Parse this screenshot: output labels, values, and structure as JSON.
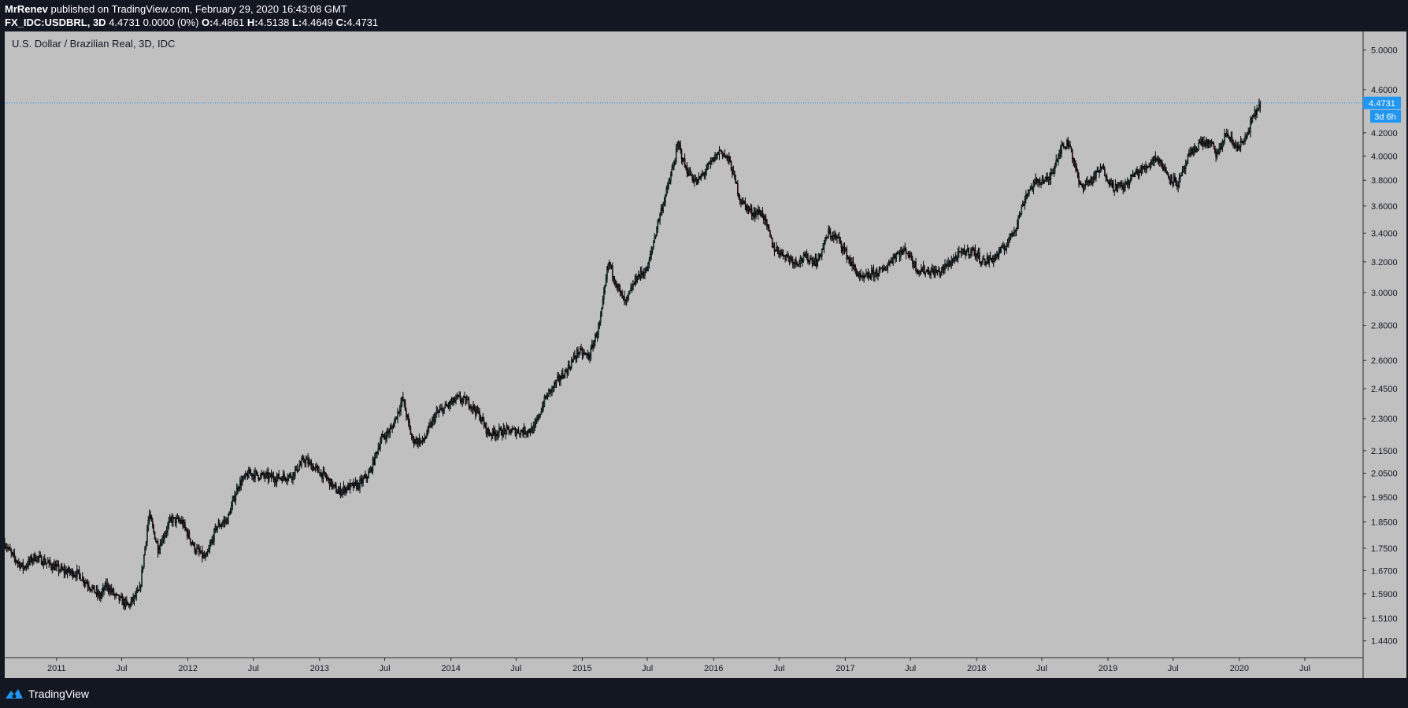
{
  "header": {
    "author": "MrRenev",
    "published": "published on TradingView.com, February 29, 2020 16:43:08 GMT",
    "symbol": "FX_IDC:USDBRL, 3D",
    "quote": "4.4731 0.0000 (0%)",
    "o_label": "O:",
    "o_value": "4.4861",
    "h_label": "H:",
    "h_value": "4.5138",
    "l_label": "L:",
    "l_value": "4.4649",
    "c_label": "C:",
    "c_value": "4.4731"
  },
  "footer": {
    "brand": "TradingView"
  },
  "colors": {
    "page_bg": "#131722",
    "plot_bg": "#c0c0c0",
    "candle": "#000000",
    "up_fill": "#26a69a",
    "down_fill": "#8b1a3a",
    "price_line": "#2196f3",
    "badge": "#2196f3"
  },
  "chart_data": {
    "type": "candlestick",
    "title": "U.S. Dollar / Brazilian Real, 3D, IDC",
    "scale": "log",
    "ylim": [
      1.39,
      5.2
    ],
    "xlim": [
      "2010-08-10",
      "2020-12-10"
    ],
    "grid": false,
    "y_ticks": [
      "5.0000",
      "4.6000",
      "4.2000",
      "4.0000",
      "3.8000",
      "3.6000",
      "3.4000",
      "3.2000",
      "3.0000",
      "2.8000",
      "2.6000",
      "2.4500",
      "2.3000",
      "2.1500",
      "2.0500",
      "1.9500",
      "1.8500",
      "1.7500",
      "1.6700",
      "1.5900",
      "1.5100",
      "1.4400"
    ],
    "x_ticks": [
      {
        "label": "2011",
        "date": "2011-01-01"
      },
      {
        "label": "Jul",
        "date": "2011-07-01"
      },
      {
        "label": "2012",
        "date": "2012-01-01"
      },
      {
        "label": "Jul",
        "date": "2012-07-01"
      },
      {
        "label": "2013",
        "date": "2013-01-01"
      },
      {
        "label": "Jul",
        "date": "2013-07-01"
      },
      {
        "label": "2014",
        "date": "2014-01-01"
      },
      {
        "label": "Jul",
        "date": "2014-07-01"
      },
      {
        "label": "2015",
        "date": "2015-01-01"
      },
      {
        "label": "Jul",
        "date": "2015-07-01"
      },
      {
        "label": "2016",
        "date": "2016-01-01"
      },
      {
        "label": "Jul",
        "date": "2016-07-01"
      },
      {
        "label": "2017",
        "date": "2017-01-01"
      },
      {
        "label": "Jul",
        "date": "2017-07-01"
      },
      {
        "label": "2018",
        "date": "2018-01-01"
      },
      {
        "label": "Jul",
        "date": "2018-07-01"
      },
      {
        "label": "2019",
        "date": "2019-01-01"
      },
      {
        "label": "Jul",
        "date": "2019-07-01"
      },
      {
        "label": "2020",
        "date": "2020-01-01"
      },
      {
        "label": "Jul",
        "date": "2020-07-01"
      }
    ],
    "last_price": 4.4731,
    "last_price_label": "4.4731",
    "countdown_label": "3d 6h",
    "close_path": [
      [
        "2010-08-10",
        1.77
      ],
      [
        "2010-09-01",
        1.72
      ],
      [
        "2010-10-01",
        1.68
      ],
      [
        "2010-11-01",
        1.72
      ],
      [
        "2010-12-01",
        1.7
      ],
      [
        "2011-01-15",
        1.67
      ],
      [
        "2011-03-01",
        1.66
      ],
      [
        "2011-04-01",
        1.62
      ],
      [
        "2011-05-01",
        1.58
      ],
      [
        "2011-05-20",
        1.62
      ],
      [
        "2011-06-15",
        1.58
      ],
      [
        "2011-07-20",
        1.55
      ],
      [
        "2011-08-20",
        1.6
      ],
      [
        "2011-09-15",
        1.88
      ],
      [
        "2011-10-10",
        1.75
      ],
      [
        "2011-11-15",
        1.86
      ],
      [
        "2011-12-15",
        1.85
      ],
      [
        "2012-01-20",
        1.75
      ],
      [
        "2012-02-20",
        1.71
      ],
      [
        "2012-03-20",
        1.83
      ],
      [
        "2012-04-20",
        1.86
      ],
      [
        "2012-05-20",
        2.0
      ],
      [
        "2012-06-20",
        2.05
      ],
      [
        "2012-07-20",
        2.04
      ],
      [
        "2012-09-01",
        2.03
      ],
      [
        "2012-10-15",
        2.04
      ],
      [
        "2012-11-20",
        2.11
      ],
      [
        "2012-12-20",
        2.07
      ],
      [
        "2013-01-20",
        2.03
      ],
      [
        "2013-02-20",
        1.97
      ],
      [
        "2013-03-20",
        1.99
      ],
      [
        "2013-04-20",
        2.0
      ],
      [
        "2013-05-20",
        2.05
      ],
      [
        "2013-06-20",
        2.2
      ],
      [
        "2013-07-20",
        2.25
      ],
      [
        "2013-08-20",
        2.4
      ],
      [
        "2013-09-15",
        2.2
      ],
      [
        "2013-10-15",
        2.19
      ],
      [
        "2013-11-20",
        2.32
      ],
      [
        "2013-12-20",
        2.36
      ],
      [
        "2014-01-20",
        2.4
      ],
      [
        "2014-02-20",
        2.38
      ],
      [
        "2014-03-20",
        2.32
      ],
      [
        "2014-04-15",
        2.23
      ],
      [
        "2014-06-01",
        2.24
      ],
      [
        "2014-07-20",
        2.24
      ],
      [
        "2014-08-20",
        2.25
      ],
      [
        "2014-09-20",
        2.4
      ],
      [
        "2014-10-20",
        2.48
      ],
      [
        "2014-11-20",
        2.55
      ],
      [
        "2014-12-20",
        2.65
      ],
      [
        "2015-01-20",
        2.62
      ],
      [
        "2015-02-20",
        2.82
      ],
      [
        "2015-03-15",
        3.2
      ],
      [
        "2015-04-15",
        3.0
      ],
      [
        "2015-05-01",
        2.93
      ],
      [
        "2015-06-01",
        3.1
      ],
      [
        "2015-07-01",
        3.15
      ],
      [
        "2015-08-01",
        3.5
      ],
      [
        "2015-09-01",
        3.8
      ],
      [
        "2015-09-25",
        4.1
      ],
      [
        "2015-10-15",
        3.9
      ],
      [
        "2015-11-15",
        3.78
      ],
      [
        "2015-12-15",
        3.9
      ],
      [
        "2016-01-20",
        4.05
      ],
      [
        "2016-02-15",
        3.95
      ],
      [
        "2016-03-15",
        3.65
      ],
      [
        "2016-04-15",
        3.55
      ],
      [
        "2016-05-15",
        3.55
      ],
      [
        "2016-06-15",
        3.3
      ],
      [
        "2016-07-15",
        3.25
      ],
      [
        "2016-08-15",
        3.2
      ],
      [
        "2016-09-15",
        3.23
      ],
      [
        "2016-10-15",
        3.2
      ],
      [
        "2016-11-15",
        3.4
      ],
      [
        "2016-12-15",
        3.35
      ],
      [
        "2017-01-15",
        3.2
      ],
      [
        "2017-02-15",
        3.08
      ],
      [
        "2017-03-15",
        3.12
      ],
      [
        "2017-04-15",
        3.14
      ],
      [
        "2017-05-20",
        3.25
      ],
      [
        "2017-06-20",
        3.28
      ],
      [
        "2017-07-20",
        3.15
      ],
      [
        "2017-08-20",
        3.14
      ],
      [
        "2017-09-20",
        3.13
      ],
      [
        "2017-10-20",
        3.2
      ],
      [
        "2017-11-20",
        3.26
      ],
      [
        "2017-12-20",
        3.28
      ],
      [
        "2018-01-20",
        3.2
      ],
      [
        "2018-02-20",
        3.23
      ],
      [
        "2018-03-20",
        3.3
      ],
      [
        "2018-04-20",
        3.45
      ],
      [
        "2018-05-20",
        3.7
      ],
      [
        "2018-06-20",
        3.8
      ],
      [
        "2018-07-20",
        3.8
      ],
      [
        "2018-08-20",
        4.05
      ],
      [
        "2018-09-15",
        4.12
      ],
      [
        "2018-10-15",
        3.75
      ],
      [
        "2018-11-15",
        3.8
      ],
      [
        "2018-12-15",
        3.9
      ],
      [
        "2019-01-15",
        3.75
      ],
      [
        "2019-02-15",
        3.75
      ],
      [
        "2019-03-15",
        3.85
      ],
      [
        "2019-04-15",
        3.9
      ],
      [
        "2019-05-15",
        4.0
      ],
      [
        "2019-06-15",
        3.85
      ],
      [
        "2019-07-15",
        3.77
      ],
      [
        "2019-08-15",
        4.0
      ],
      [
        "2019-09-15",
        4.12
      ],
      [
        "2019-10-15",
        4.1
      ],
      [
        "2019-11-01",
        4.0
      ],
      [
        "2019-11-25",
        4.2
      ],
      [
        "2019-12-20",
        4.08
      ],
      [
        "2020-01-15",
        4.12
      ],
      [
        "2020-02-10",
        4.35
      ],
      [
        "2020-02-28",
        4.47
      ]
    ]
  }
}
